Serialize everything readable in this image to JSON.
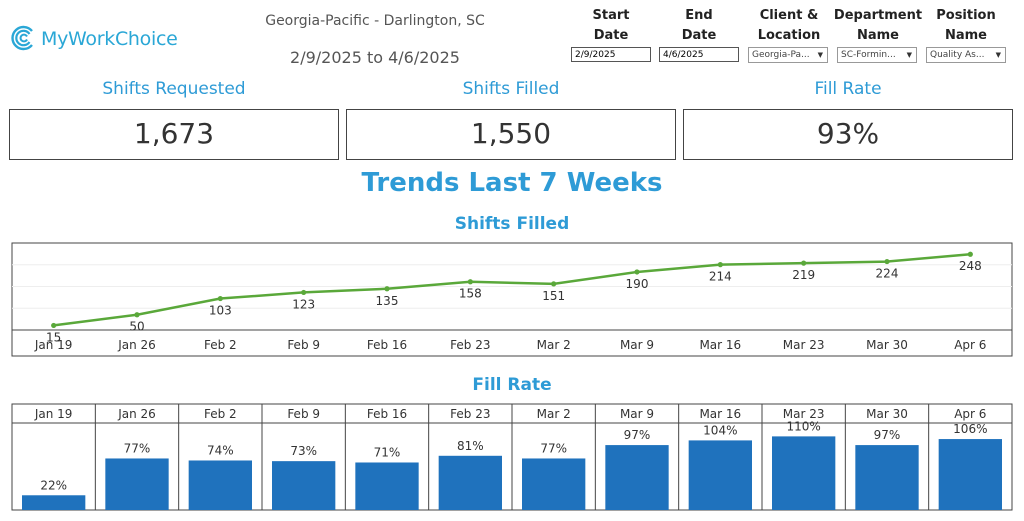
{
  "header": {
    "logo_text": "MyWorkChoice",
    "site": "Georgia-Pacific - Darlington, SC",
    "range": "2/9/2025 to 4/6/2025"
  },
  "filters": {
    "start": {
      "label1": "Start",
      "label2": "Date",
      "value": "2/9/2025"
    },
    "end": {
      "label1": "End",
      "label2": "Date",
      "value": "4/6/2025"
    },
    "client": {
      "label1": "Client &",
      "label2": "Location",
      "value": "Georgia-Pa..."
    },
    "department": {
      "label1": "Department",
      "label2": "Name",
      "value": "SC-Formin..."
    },
    "position": {
      "label1": "Position",
      "label2": "Name",
      "value": "Quality As..."
    }
  },
  "kpis": [
    {
      "title": "Shifts Requested",
      "value": "1,673"
    },
    {
      "title": "Shifts Filled",
      "value": "1,550"
    },
    {
      "title": "Fill Rate",
      "value": "93%"
    }
  ],
  "trends_title": "Trends Last 7 Weeks",
  "colors": {
    "accent": "#2e9bd6",
    "line": "#5aa83a",
    "bar": "#1f72bd"
  },
  "chart_data": [
    {
      "type": "line",
      "title": "Shifts Filled",
      "categories": [
        "Jan 19",
        "Jan 26",
        "Feb 2",
        "Feb 9",
        "Feb 16",
        "Feb 23",
        "Mar 2",
        "Mar 9",
        "Mar 16",
        "Mar 23",
        "Mar 30",
        "Apr 6"
      ],
      "values": [
        15,
        50,
        103,
        123,
        135,
        158,
        151,
        190,
        214,
        219,
        224,
        248
      ],
      "labels": [
        "15",
        "50",
        "103",
        "123",
        "135",
        "158",
        "151",
        "190",
        "214",
        "219",
        "224",
        "248"
      ],
      "ylim": [
        0,
        275
      ],
      "grid": true
    },
    {
      "type": "bar",
      "title": "Fill Rate",
      "categories": [
        "Jan 19",
        "Jan 26",
        "Feb 2",
        "Feb 9",
        "Feb 16",
        "Feb 23",
        "Mar 2",
        "Mar 9",
        "Mar 16",
        "Mar 23",
        "Mar 30",
        "Apr 6"
      ],
      "values": [
        22,
        77,
        74,
        73,
        71,
        81,
        77,
        97,
        104,
        110,
        97,
        106
      ],
      "labels": [
        "22%",
        "77%",
        "74%",
        "73%",
        "71%",
        "81%",
        "77%",
        "97%",
        "104%",
        "110%",
        "97%",
        "106%"
      ],
      "ylim": [
        0,
        130
      ]
    }
  ]
}
